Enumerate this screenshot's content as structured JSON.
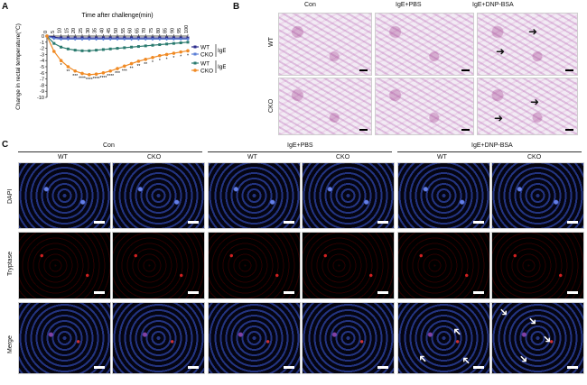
{
  "panels": {
    "a": "A",
    "b": "B",
    "c": "C"
  },
  "chart_data": {
    "type": "line",
    "xlabel": "Time after challenge(min)",
    "ylabel": "Change in rectal temperature(°C)",
    "x": [
      0,
      5,
      10,
      15,
      20,
      25,
      30,
      35,
      40,
      45,
      50,
      55,
      60,
      65,
      70,
      75,
      80,
      85,
      90,
      95,
      100
    ],
    "x_ticks": [
      "0",
      "5",
      "10",
      "15",
      "20",
      "25",
      "30",
      "35",
      "40",
      "45",
      "50",
      "55",
      "60",
      "65",
      "70",
      "75",
      "80",
      "85",
      "90",
      "95",
      "100"
    ],
    "y_ticks": [
      "0",
      "-1",
      "-2",
      "-3",
      "-4",
      "-5",
      "-6",
      "-7",
      "-8",
      "-9",
      "-10"
    ],
    "ylim": [
      -10,
      0
    ],
    "series": [
      {
        "name": "WT",
        "color": "#2c2c8c",
        "values": [
          0,
          -0.2,
          -0.3,
          -0.3,
          -0.3,
          -0.3,
          -0.3,
          -0.3,
          -0.3,
          -0.3,
          -0.3,
          -0.3,
          -0.3,
          -0.3,
          -0.3,
          -0.3,
          -0.3,
          -0.3,
          -0.3,
          -0.3,
          -0.3
        ]
      },
      {
        "name": "CKO",
        "color": "#5b7fd6",
        "values": [
          0,
          -0.4,
          -0.5,
          -0.5,
          -0.5,
          -0.5,
          -0.5,
          -0.5,
          -0.5,
          -0.5,
          -0.5,
          -0.5,
          -0.5,
          -0.5,
          -0.5,
          -0.5,
          -0.5,
          -0.5,
          -0.5,
          -0.5,
          -0.5
        ]
      },
      {
        "name": "WT",
        "color": "#2a7a6e",
        "values": [
          0,
          -1.2,
          -1.8,
          -2.1,
          -2.3,
          -2.4,
          -2.4,
          -2.3,
          -2.2,
          -2.1,
          -2.0,
          -1.9,
          -1.8,
          -1.7,
          -1.6,
          -1.5,
          -1.4,
          -1.3,
          -1.2,
          -1.1,
          -1.0
        ]
      },
      {
        "name": "CKO",
        "color": "#f08a24",
        "values": [
          0,
          -2.5,
          -4.0,
          -5.0,
          -5.7,
          -6.1,
          -6.3,
          -6.2,
          -6.0,
          -5.7,
          -5.3,
          -4.9,
          -4.5,
          -4.1,
          -3.8,
          -3.5,
          -3.2,
          -3.0,
          -2.8,
          -2.6,
          -2.4
        ]
      }
    ],
    "legend_groups": [
      {
        "label": "IgE+PBS",
        "series": [
          "WT",
          "CKO"
        ]
      },
      {
        "label": "IgE+DNP-BSA",
        "series": [
          "WT",
          "CKO"
        ]
      }
    ],
    "significance": [
      "*",
      "**",
      "***",
      "****",
      "****",
      "****",
      "****",
      "****",
      "***",
      "***",
      "**",
      "**",
      "**",
      "*",
      "*",
      "*",
      "*",
      "*",
      "*"
    ]
  },
  "panel_b": {
    "columns": [
      "Con",
      "IgE+PBS",
      "IgE+DNP-BSA"
    ],
    "rows": [
      "WT",
      "CKO"
    ]
  },
  "panel_c": {
    "groups": [
      "Con",
      "IgE+PBS",
      "IgE+DNP-BSA"
    ],
    "columns": [
      "WT",
      "CKO",
      "WT",
      "CKO",
      "WT",
      "CKO"
    ],
    "rows": [
      "DAPI",
      "Tryptase",
      "Merge"
    ]
  }
}
